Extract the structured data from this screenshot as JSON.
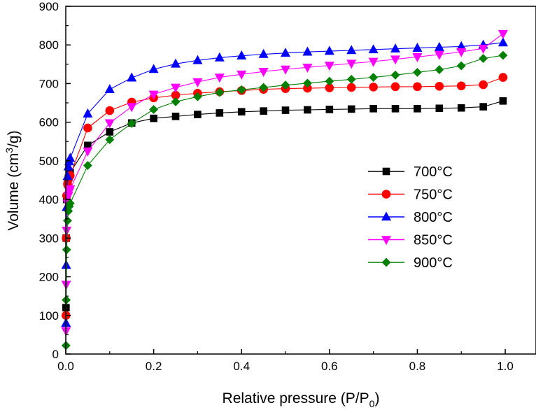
{
  "chart_data": {
    "type": "line",
    "xlabel": {
      "main": "Relative pressure (P/P",
      "sub": "0",
      "end": ")"
    },
    "ylabel": {
      "main": "Volume (cm",
      "sup": "3",
      "end": "/g)"
    },
    "xlim": [
      0.0,
      1.07
    ],
    "ylim": [
      0,
      900
    ],
    "xticks": [
      0.0,
      0.2,
      0.4,
      0.6,
      0.8,
      1.0
    ],
    "xtick_labels": [
      "0.0",
      "0.2",
      "0.4",
      "0.6",
      "0.8",
      "1.0"
    ],
    "yticks": [
      0,
      100,
      200,
      300,
      400,
      500,
      600,
      700,
      800,
      900
    ],
    "ytick_labels": [
      "0",
      "100",
      "200",
      "300",
      "400",
      "500",
      "600",
      "700",
      "800",
      "900"
    ],
    "grid": false,
    "legend_position": "center-right",
    "series": [
      {
        "name": "700°C",
        "color": "#000000",
        "marker": "square",
        "x": [
          0.0005,
          0.001,
          0.002,
          0.004,
          0.006,
          0.008,
          0.01,
          0.05,
          0.1,
          0.15,
          0.2,
          0.25,
          0.3,
          0.35,
          0.4,
          0.45,
          0.5,
          0.55,
          0.6,
          0.65,
          0.7,
          0.75,
          0.8,
          0.85,
          0.9,
          0.95,
          0.995
        ],
        "y": [
          120,
          300,
          400,
          440,
          455,
          462,
          470,
          540,
          575,
          598,
          610,
          615,
          620,
          624,
          627,
          629,
          631,
          632,
          633,
          634,
          635,
          635,
          635,
          636,
          637,
          640,
          655
        ]
      },
      {
        "name": "750°C",
        "color": "#ff0000",
        "marker": "circle",
        "x": [
          0.0005,
          0.001,
          0.002,
          0.004,
          0.006,
          0.008,
          0.01,
          0.05,
          0.1,
          0.15,
          0.2,
          0.25,
          0.3,
          0.35,
          0.4,
          0.45,
          0.5,
          0.55,
          0.6,
          0.65,
          0.7,
          0.75,
          0.8,
          0.85,
          0.9,
          0.95,
          0.995
        ],
        "y": [
          100,
          300,
          410,
          440,
          452,
          458,
          462,
          585,
          630,
          652,
          663,
          670,
          675,
          679,
          682,
          685,
          687,
          688,
          689,
          690,
          691,
          692,
          692,
          693,
          694,
          697,
          716
        ]
      },
      {
        "name": "800°C",
        "color": "#0000ff",
        "marker": "triangle-up",
        "x": [
          0.0005,
          0.001,
          0.002,
          0.004,
          0.006,
          0.008,
          0.01,
          0.05,
          0.1,
          0.15,
          0.2,
          0.25,
          0.3,
          0.35,
          0.4,
          0.45,
          0.5,
          0.55,
          0.6,
          0.65,
          0.7,
          0.75,
          0.8,
          0.85,
          0.9,
          0.95,
          0.995
        ],
        "y": [
          80,
          230,
          380,
          460,
          485,
          498,
          507,
          622,
          685,
          715,
          737,
          751,
          760,
          767,
          772,
          776,
          779,
          782,
          784,
          786,
          788,
          790,
          792,
          794,
          796,
          800,
          806
        ]
      },
      {
        "name": "850°C",
        "color": "#ff00ff",
        "marker": "triangle-down",
        "x": [
          0.0005,
          0.001,
          0.002,
          0.004,
          0.006,
          0.008,
          0.01,
          0.05,
          0.1,
          0.15,
          0.2,
          0.25,
          0.3,
          0.35,
          0.4,
          0.45,
          0.5,
          0.55,
          0.6,
          0.65,
          0.7,
          0.75,
          0.8,
          0.85,
          0.9,
          0.95,
          0.995
        ],
        "y": [
          60,
          180,
          320,
          390,
          410,
          420,
          427,
          525,
          598,
          640,
          672,
          690,
          704,
          716,
          724,
          731,
          737,
          742,
          747,
          752,
          757,
          763,
          769,
          775,
          782,
          791,
          829
        ]
      },
      {
        "name": "900°C",
        "color": "#008000",
        "marker": "diamond",
        "x": [
          0.0005,
          0.001,
          0.002,
          0.004,
          0.006,
          0.008,
          0.01,
          0.05,
          0.1,
          0.15,
          0.2,
          0.25,
          0.3,
          0.35,
          0.4,
          0.45,
          0.5,
          0.55,
          0.6,
          0.65,
          0.7,
          0.75,
          0.8,
          0.85,
          0.9,
          0.95,
          0.995
        ],
        "y": [
          22,
          140,
          270,
          345,
          370,
          382,
          390,
          488,
          555,
          597,
          633,
          653,
          666,
          677,
          684,
          690,
          696,
          701,
          706,
          711,
          716,
          722,
          729,
          736,
          746,
          765,
          773
        ]
      }
    ]
  }
}
